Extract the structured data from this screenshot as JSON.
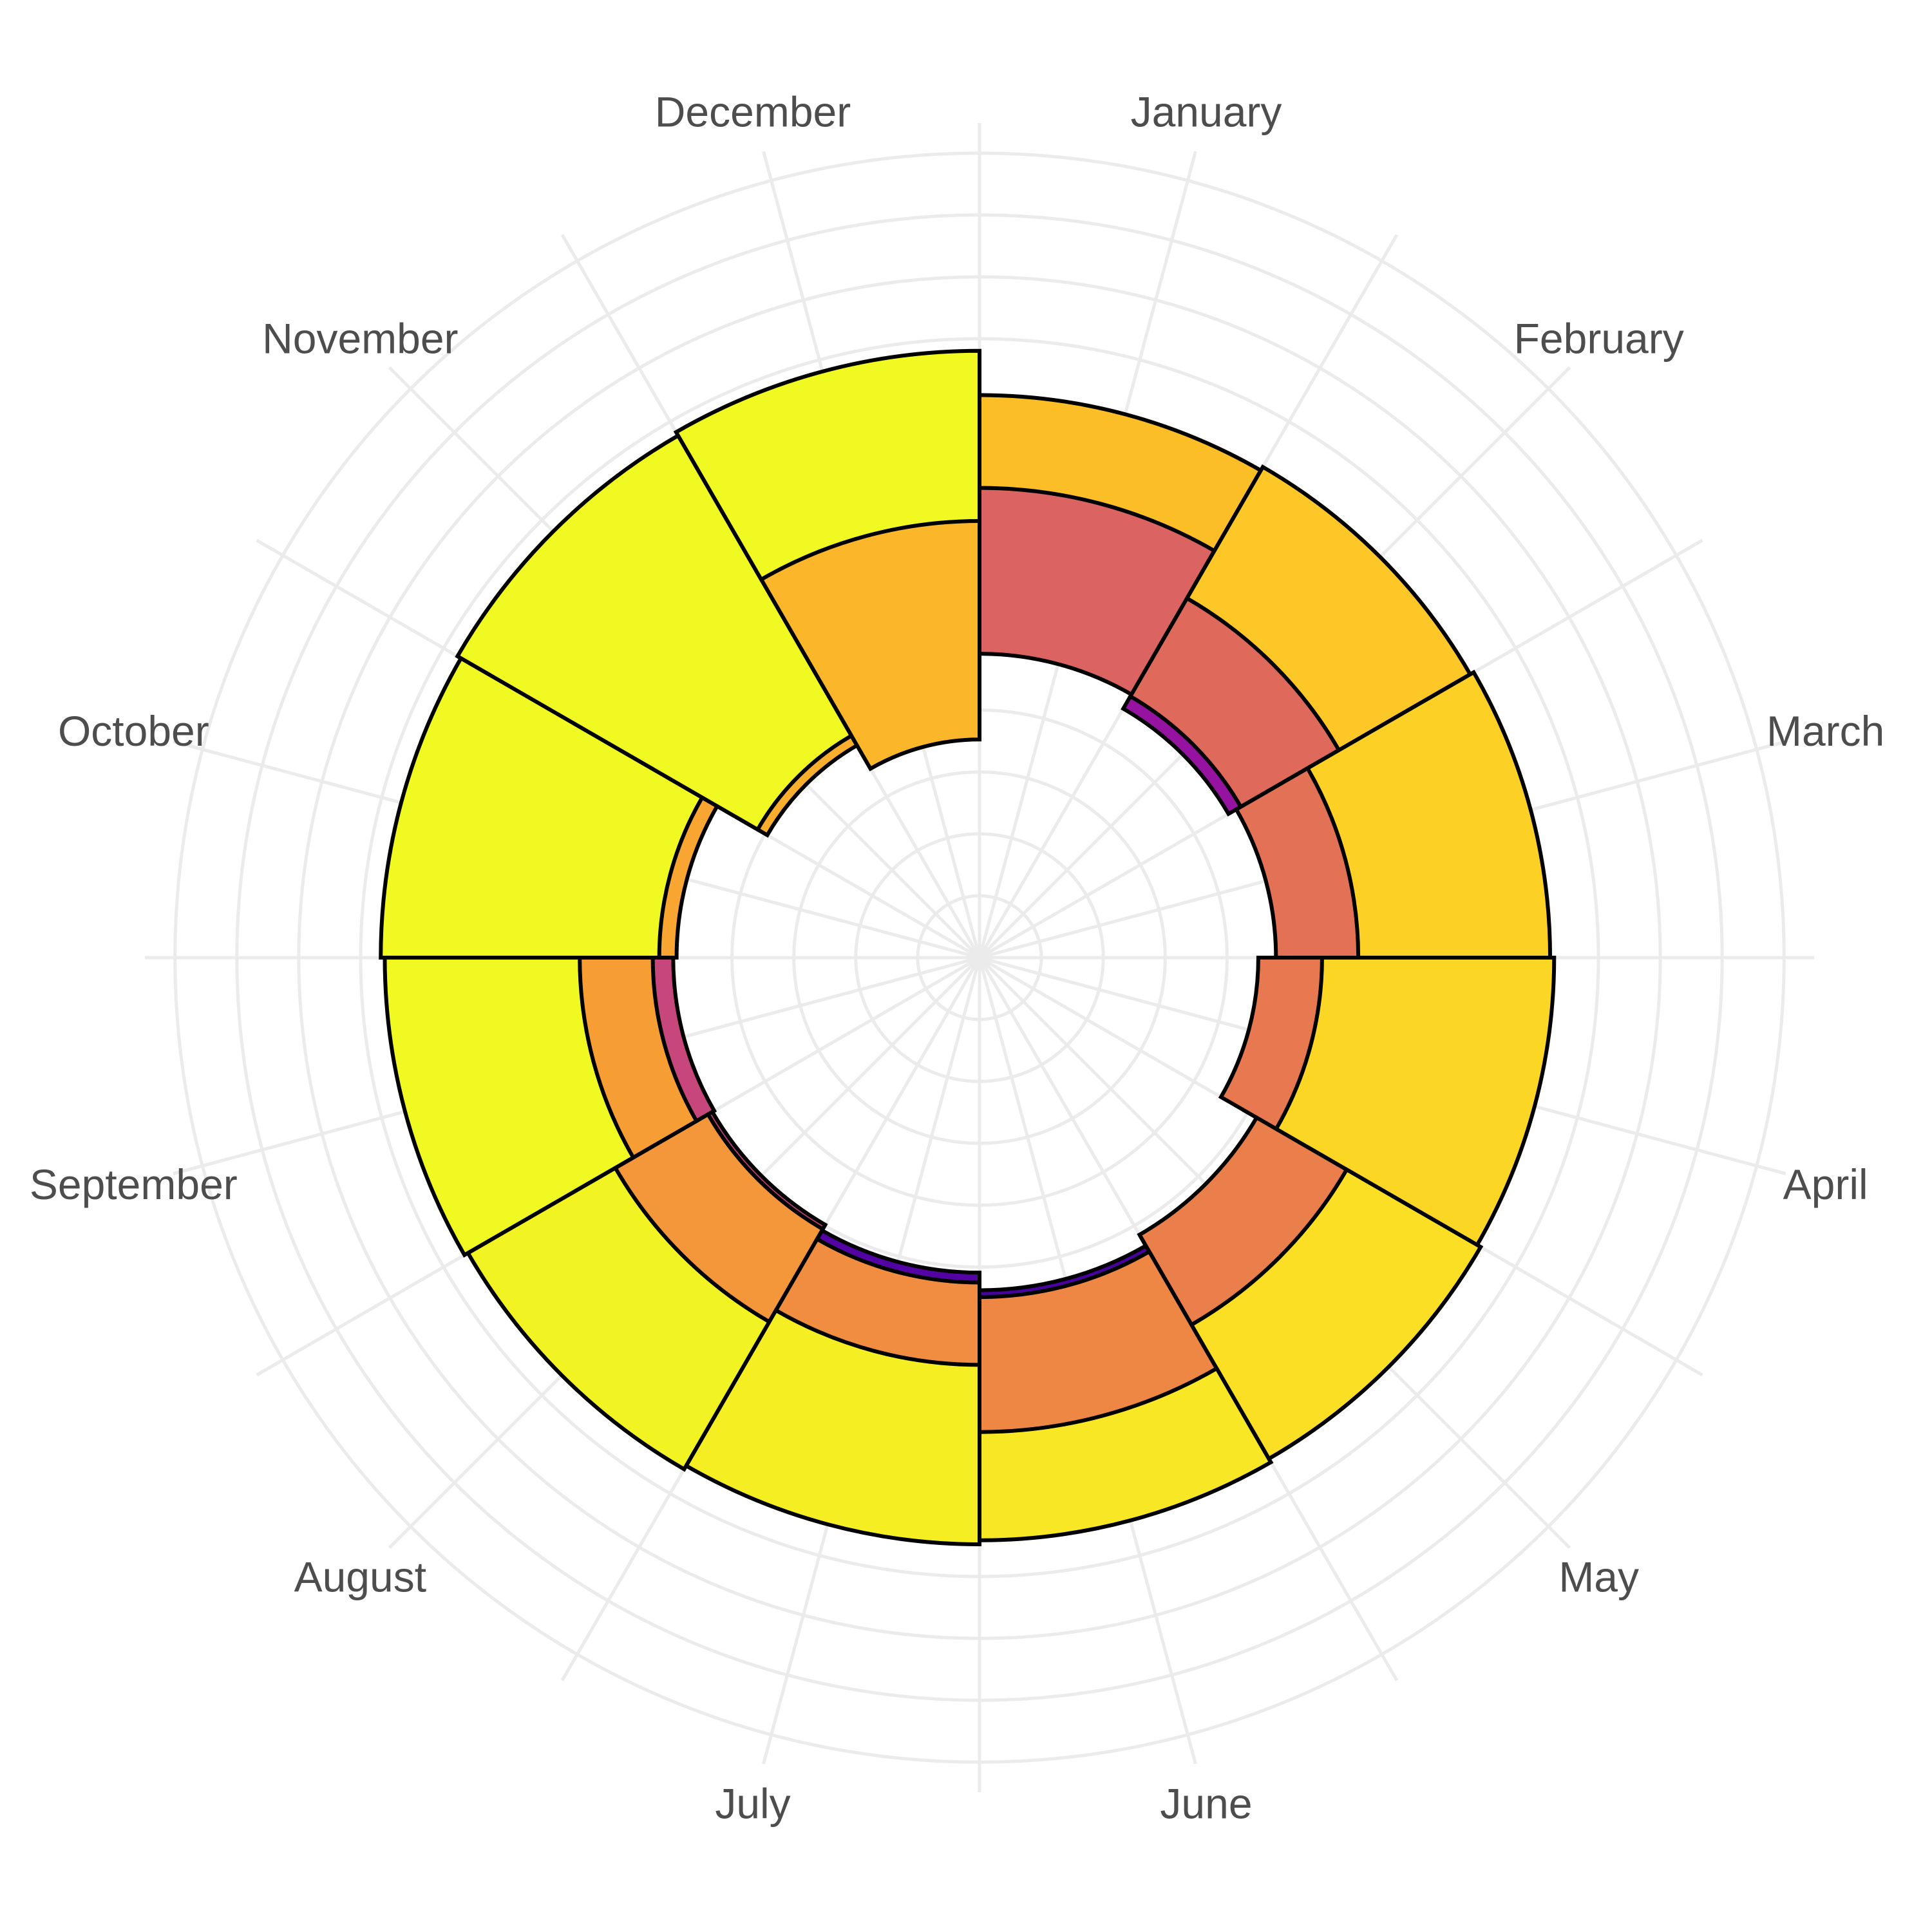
{
  "chart_data": {
    "type": "polar-spiral-bar",
    "title": "",
    "months": [
      "January",
      "February",
      "March",
      "April",
      "May",
      "June",
      "July",
      "August",
      "September",
      "October",
      "November",
      "December"
    ],
    "spiral": {
      "unit": "month index (0 = January, 1 = February, ...)",
      "start": 0,
      "step": 1,
      "outer_edge_of_first_bar": 13.5,
      "outer_edge_growth_per_month": 0.13
    },
    "values": [
      3.0,
      3.5,
      4.0,
      4.0,
      3.6,
      3.4,
      4.1,
      3.8,
      3.6,
      4.1,
      4.9,
      4.5,
      5.2,
      5.9,
      5.6,
      5.0,
      4.2,
      4.4,
      5.0,
      6.0,
      6.2,
      4.8,
      5.5,
      6.5,
      6.8,
      7.0,
      7.3,
      8.0,
      6.8,
      6.3,
      6.9,
      7.4,
      7.1,
      8.0,
      10.0,
      11.0,
      3.0,
      4.9,
      6.2,
      7.5,
      5.0,
      3.5,
      5.8,
      5.5,
      6.3,
      9.0,
      11.2,
      5.5
    ],
    "colors": [
      "#0d0887",
      "#1a0590",
      "#260491",
      "#320397",
      "#3e049c",
      "#48039f",
      "#5302a3",
      "#5c01a6",
      "#6700a8",
      "#7100a8",
      "#7a02a8",
      "#8405a7",
      "#8d0ca5",
      "#9613a1",
      "#9f1a9e",
      "#a62098",
      "#ae2892",
      "#b5308c",
      "#bc3885",
      "#c23f80",
      "#c7467b",
      "#cd4d74",
      "#d1546f",
      "#d65c69",
      "#db6361",
      "#df6a5c",
      "#e27156",
      "#e77850",
      "#eb7f4b",
      "#ee8644",
      "#f18d40",
      "#f4963a",
      "#f69e34",
      "#f8a631",
      "#faae2e",
      "#fbb62a",
      "#fcbe27",
      "#fdc727",
      "#fdd026",
      "#fcd625",
      "#fadf25",
      "#f8e725",
      "#f5ee23",
      "#f1f422",
      "#f0f921",
      "#f0f921",
      "#f0f921",
      "#f0f921"
    ],
    "radial_axis": {
      "labels_shown": false,
      "gridline_values": [
        2,
        4,
        6,
        8,
        10,
        12,
        14,
        16,
        18,
        20,
        22,
        24,
        26
      ]
    },
    "angular_gridlines_per_month": 2,
    "grid": true,
    "legend": "none"
  }
}
